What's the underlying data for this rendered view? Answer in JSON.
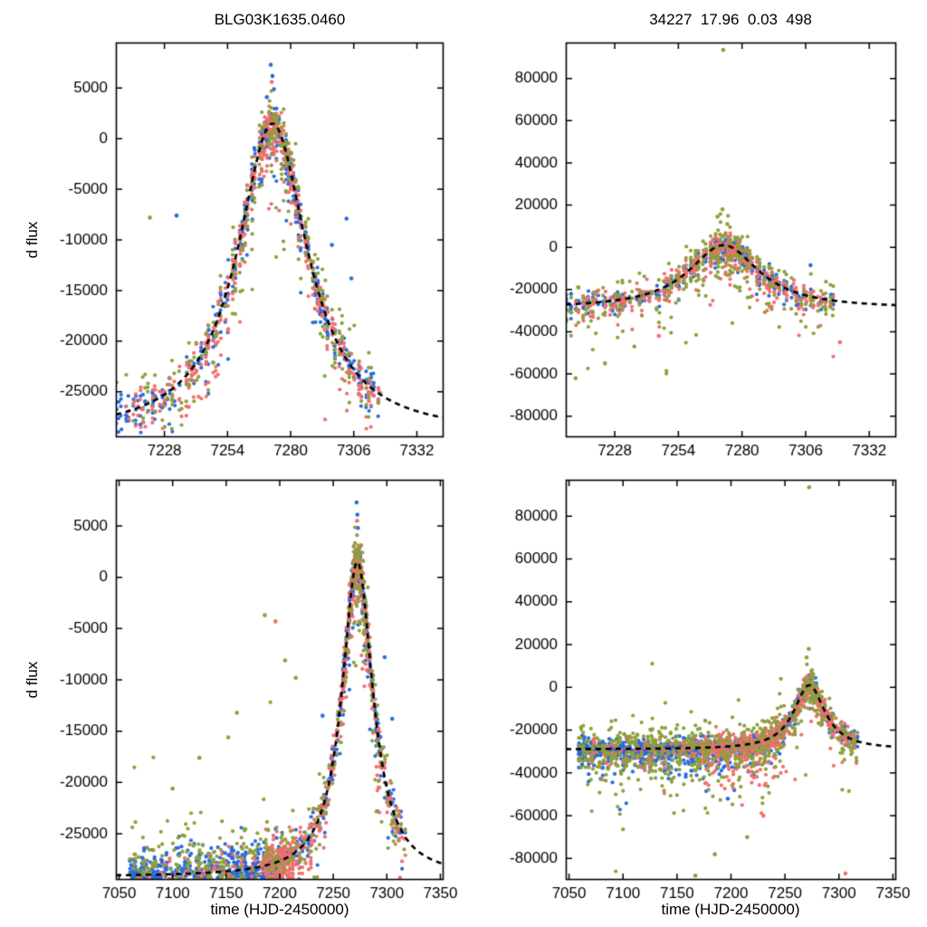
{
  "figure": {
    "background": "#ffffff",
    "frame_color": "#000000",
    "model_curve_color": "#000000",
    "model_curve_style": "dashed"
  },
  "chart_data": [
    {
      "id": "top-left",
      "type": "scatter",
      "title": "BLG03K1635.0460",
      "xlabel": "",
      "ylabel": "d flux",
      "xlim": [
        7208,
        7343
      ],
      "ylim": [
        -29500,
        9500
      ],
      "xticks": [
        7228,
        7254,
        7280,
        7306,
        7332
      ],
      "yticks": [
        -25000,
        -20000,
        -15000,
        -10000,
        -5000,
        0,
        5000
      ],
      "model": {
        "t0": 7272.5,
        "base": -29200,
        "amp": 30700,
        "w": 18,
        "p": 1.05
      },
      "series": [
        {
          "name": "blue",
          "color": "#2a6bdc",
          "windows": [
            {
              "range": [
                7208,
                7317
              ],
              "n": 520,
              "sigma": 900,
              "tail": 3200,
              "tailFrac": 0.3,
              "focus": {
                "t0": 7272.5,
                "sigma": 14,
                "frac": 0.45
              }
            }
          ],
          "extra": [
            [
              7271.8,
              7300
            ],
            [
              7272.5,
              6200
            ],
            [
              7273.1,
              4900
            ],
            [
              7270.2,
              4100
            ],
            [
              7233,
              -7600
            ],
            [
              7303,
              -7900
            ],
            [
              7305,
              -13800
            ],
            [
              7297,
              -10500
            ]
          ]
        },
        {
          "name": "salmon",
          "color": "#ef706c",
          "windows": [
            {
              "range": [
                7212,
                7317
              ],
              "n": 520,
              "sigma": 950,
              "tail": 3800,
              "tailFrac": 0.35,
              "focus": {
                "t0": 7272.5,
                "sigma": 14,
                "frac": 0.45
              }
            }
          ],
          "extra": [
            [
              7272.2,
              5600
            ],
            [
              7290,
              -16800
            ],
            [
              7293,
              -17500
            ],
            [
              7238,
              -26500
            ]
          ]
        },
        {
          "name": "olive",
          "color": "#8ca03c",
          "windows": [
            {
              "range": [
                7208,
                7317
              ],
              "n": 270,
              "sigma": 1600,
              "tail": 5200,
              "tailFrac": 0.4,
              "up": 1600,
              "upFrac": 0.25,
              "focus": {
                "t0": 7272.5,
                "sigma": 14,
                "frac": 0.4
              }
            }
          ],
          "extra": [
            [
              7222,
              -7800
            ],
            [
              7286,
              -9500
            ],
            [
              7288,
              -12000
            ]
          ]
        }
      ]
    },
    {
      "id": "top-right",
      "type": "scatter",
      "title": "34227  17.96  0.03  498",
      "xlabel": "",
      "ylabel": "",
      "xlim": [
        7208,
        7343
      ],
      "ylim": [
        -90000,
        97000
      ],
      "xticks": [
        7228,
        7254,
        7280,
        7306,
        7332
      ],
      "yticks": [
        -80000,
        -60000,
        -40000,
        -20000,
        0,
        20000,
        40000,
        60000,
        80000
      ],
      "model": {
        "t0": 7272.5,
        "base": -29000,
        "amp": 30000,
        "w": 18,
        "p": 1.05
      },
      "series": [
        {
          "name": "blue",
          "color": "#2a6bdc",
          "windows": [
            {
              "range": [
                7208,
                7318
              ],
              "n": 480,
              "sigma": 2300,
              "tail": 3500,
              "tailFrac": 0.2,
              "focus": {
                "t0": 7272.5,
                "sigma": 14,
                "frac": 0.4
              }
            }
          ],
          "extra": [
            [
              7272,
              5200
            ],
            [
              7308,
              -8500
            ]
          ]
        },
        {
          "name": "salmon",
          "color": "#ef706c",
          "windows": [
            {
              "range": [
                7212,
                7318
              ],
              "n": 480,
              "sigma": 2600,
              "tail": 9000,
              "tailFrac": 0.3,
              "focus": {
                "t0": 7272.5,
                "sigma": 14,
                "frac": 0.4
              }
            }
          ],
          "extra": [
            [
              7246,
              -42000
            ],
            [
              7320,
              -45000
            ]
          ]
        },
        {
          "name": "olive",
          "color": "#8ca03c",
          "windows": [
            {
              "range": [
                7208,
                7318
              ],
              "n": 300,
              "sigma": 5000,
              "tail": 16000,
              "tailFrac": 0.35,
              "up": 5000,
              "upFrac": 0.2,
              "focus": {
                "t0": 7272.5,
                "sigma": 14,
                "frac": 0.35
              }
            }
          ],
          "extra": [
            [
              7272.3,
              93500
            ],
            [
              7272,
              18000
            ],
            [
              7270,
              14500
            ],
            [
              7274,
              11000
            ],
            [
              7212,
              -62000
            ],
            [
              7224,
              -55000
            ],
            [
              7236,
              -47000
            ]
          ]
        }
      ]
    },
    {
      "id": "bottom-left",
      "type": "scatter",
      "title": "",
      "xlabel": "time (HJD-2450000)",
      "ylabel": "d flux",
      "xlim": [
        7047,
        7353
      ],
      "ylim": [
        -29500,
        9500
      ],
      "xticks": [
        7050,
        7100,
        7150,
        7200,
        7250,
        7300,
        7350
      ],
      "yticks": [
        -25000,
        -20000,
        -15000,
        -10000,
        -5000,
        0,
        5000
      ],
      "model": {
        "t0": 7272.5,
        "base": -29200,
        "amp": 30700,
        "w": 18,
        "p": 1.05
      },
      "series": [
        {
          "name": "blue",
          "color": "#2a6bdc",
          "windows": [
            {
              "range": [
                7060,
                7205
              ],
              "n": 850,
              "sigma": 1300,
              "tail": 4200,
              "tailFrac": 0.5
            },
            {
              "range": [
                7205,
                7318
              ],
              "n": 420,
              "sigma": 900,
              "tail": 3000,
              "tailFrac": 0.3,
              "focus": {
                "t0": 7272.5,
                "sigma": 10,
                "frac": 0.5
              }
            }
          ],
          "extra": [
            [
              7271.8,
              7300
            ],
            [
              7272.5,
              6100
            ],
            [
              7273,
              4800
            ],
            [
              7240,
              -13500
            ],
            [
              7298,
              -7800
            ],
            [
              7305,
              -13800
            ]
          ]
        },
        {
          "name": "salmon",
          "color": "#ef706c",
          "windows": [
            {
              "range": [
                7062,
                7185
              ],
              "n": 120,
              "sigma": 1300,
              "tail": 4000,
              "tailFrac": 0.5
            },
            {
              "range": [
                7185,
                7215
              ],
              "n": 300,
              "sigma": 1400,
              "tail": 5000,
              "tailFrac": 0.55
            },
            {
              "range": [
                7215,
                7318
              ],
              "n": 420,
              "sigma": 950,
              "tail": 3600,
              "tailFrac": 0.35,
              "focus": {
                "t0": 7272.5,
                "sigma": 10,
                "frac": 0.5
              }
            }
          ],
          "extra": [
            [
              7196,
              -4300
            ],
            [
              7272.2,
              5500
            ]
          ]
        },
        {
          "name": "olive",
          "color": "#8ca03c",
          "windows": [
            {
              "range": [
                7060,
                7205
              ],
              "n": 330,
              "sigma": 2200,
              "tail": 3500,
              "tailFrac": 0.3,
              "up": 9000,
              "upFrac": 0.06
            },
            {
              "range": [
                7205,
                7318
              ],
              "n": 200,
              "sigma": 1600,
              "tail": 5200,
              "tailFrac": 0.4,
              "up": 1600,
              "upFrac": 0.2,
              "focus": {
                "t0": 7272.5,
                "sigma": 10,
                "frac": 0.4
              }
            }
          ],
          "extra": [
            [
              7186,
              -3700
            ],
            [
              7160,
              -13200
            ],
            [
              7152,
              -15600
            ],
            [
              7125,
              -17600
            ],
            [
              7100,
              -20600
            ],
            [
              7205,
              -8100
            ],
            [
              7215,
              -9800
            ]
          ]
        }
      ]
    },
    {
      "id": "bottom-right",
      "type": "scatter",
      "title": "",
      "xlabel": "time (HJD-2450000)",
      "ylabel": "",
      "xlim": [
        7047,
        7353
      ],
      "ylim": [
        -90000,
        97000
      ],
      "xticks": [
        7050,
        7100,
        7150,
        7200,
        7250,
        7300,
        7350
      ],
      "yticks": [
        -80000,
        -60000,
        -40000,
        -20000,
        0,
        20000,
        40000,
        60000,
        80000
      ],
      "model": {
        "t0": 7272.5,
        "base": -29000,
        "amp": 30000,
        "w": 18,
        "p": 1.05
      },
      "series": [
        {
          "name": "blue",
          "color": "#2a6bdc",
          "windows": [
            {
              "range": [
                7058,
                7250
              ],
              "n": 900,
              "sigma": 2400,
              "tail": 7000,
              "tailFrac": 0.35
            },
            {
              "range": [
                7250,
                7318
              ],
              "n": 260,
              "sigma": 2200,
              "tail": 4000,
              "tailFrac": 0.2,
              "focus": {
                "t0": 7272.5,
                "sigma": 10,
                "frac": 0.45
              }
            }
          ],
          "extra": [
            [
              7272,
              5500
            ],
            [
              7197,
              -52000
            ],
            [
              7203,
              -48000
            ]
          ]
        },
        {
          "name": "salmon",
          "color": "#ef706c",
          "windows": [
            {
              "range": [
                7070,
                7170
              ],
              "n": 120,
              "sigma": 2600,
              "tail": 8000,
              "tailFrac": 0.3
            },
            {
              "range": [
                7170,
                7250
              ],
              "n": 420,
              "sigma": 2800,
              "tail": 10000,
              "tailFrac": 0.4
            },
            {
              "range": [
                7250,
                7318
              ],
              "n": 260,
              "sigma": 2500,
              "tail": 8000,
              "tailFrac": 0.3,
              "focus": {
                "t0": 7272.5,
                "sigma": 10,
                "frac": 0.45
              }
            }
          ],
          "extra": [
            [
              7306,
              -87000
            ],
            [
              7230,
              -60000
            ]
          ]
        },
        {
          "name": "olive",
          "color": "#8ca03c",
          "windows": [
            {
              "range": [
                7058,
                7250
              ],
              "n": 500,
              "sigma": 6000,
              "tail": 16000,
              "tailFrac": 0.3,
              "up": 9000,
              "upFrac": 0.15
            },
            {
              "range": [
                7250,
                7318
              ],
              "n": 140,
              "sigma": 5000,
              "tail": 14000,
              "tailFrac": 0.3,
              "focus": {
                "t0": 7272.5,
                "sigma": 10,
                "frac": 0.35
              }
            }
          ],
          "extra": [
            [
              7272.3,
              93500
            ],
            [
              7272,
              18000
            ],
            [
              7270,
              14000
            ],
            [
              7167,
              -88000
            ],
            [
              7185,
              -78000
            ],
            [
              7215,
              -70000
            ]
          ]
        }
      ]
    }
  ]
}
